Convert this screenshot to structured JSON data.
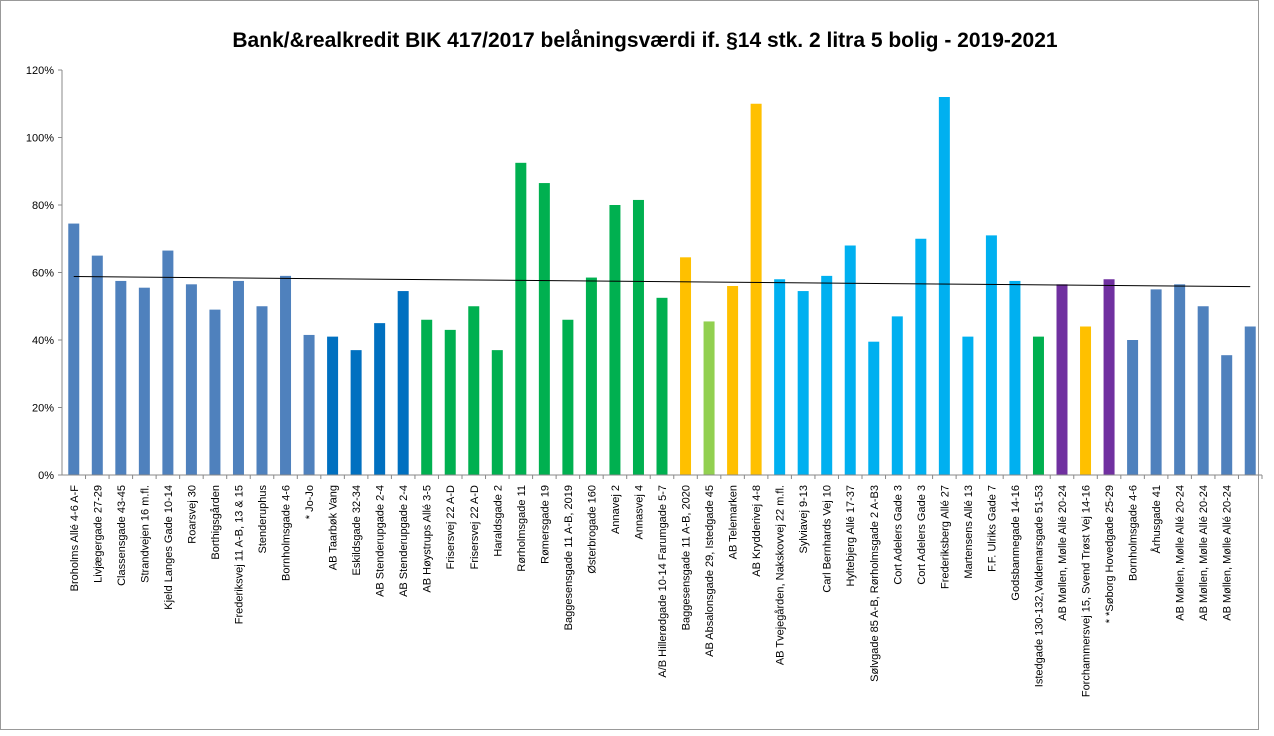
{
  "chart_data": {
    "type": "bar",
    "title": "Bank/&realkredit BIK 417/2017 belåningsværdi if.  §14 stk. 2 litra 5  bolig - 2019-2021",
    "categories": [
      "Broholms Allé 4-6 A-F",
      "Livjægergade 27-29",
      "Classensgade 43-45",
      "Strandvejen 16 m.fl.",
      "Kjeld Langes Gade 10-14",
      "Roarsvej 30",
      "Borthigsgården",
      "Frederiksvej 11 A-B, 13 & 15",
      "Stenderuphus",
      "Bornholmsgade 4-6",
      "* Jo-Jo",
      "AB Taarbøk Vang",
      "Eskildsgade 32-34",
      "AB Stenderupgade 2-4",
      "AB Stenderupgade 2-4",
      "AB Høystrups Allé 3-5",
      "Frisersvej 22 A-D",
      "Frisersvej 22 A-D",
      "Haraldsgade 2",
      "Rørholmsgade 11",
      "Rømersgade 19",
      "Baggesensgade 11 A-B, 2019",
      "Østerbrogade 160",
      "Annavej 2",
      "Annasvej 4",
      "A/B Hillerødgade 10-14 Farumgade 5-7",
      "Baggesensgade 11 A-B, 2020",
      "AB Absalonsgade 29, Istedgade 45",
      "AB Telemarken",
      "AB Krydderivej 4-8",
      "AB Tvejegården, Nakskovvej 22 m.fl.",
      "Sylviavej 9-13",
      "Carl Bernhards Vej 10",
      "Hyltebjerg Allé 17-37",
      "Sølvgade 85 A-B, Rørholmsgade 2 A-B3",
      "Cort Adelers Gade 3",
      "Cort Adelers Gade 3",
      "Frederiksberg Allé 27",
      "Martensens Allé 13",
      "F.F. Ulriks Gade 7",
      "Godsbanmegade 14-16",
      "Istedgade 130-132,Valdemarsgade 51-53",
      "AB Møllen, Mølle Allé 20-24",
      "Forchammersvej 15, Svend Trøst Vej 14-16",
      "* *Søborg Hovedgade 25-29",
      "Bornholmsgade 4-6",
      "Århusgade 41",
      "AB Møllen, Mølle Allé 20-24",
      "AB Møllen, Mølle Allé 20-24",
      "AB Møllen, Mølle Allé 20-24",
      null
    ],
    "values": [
      74.5,
      65,
      57.5,
      55.5,
      66.5,
      56.5,
      49,
      57.5,
      50,
      59,
      41.5,
      41,
      37,
      45,
      54.5,
      46,
      43,
      50,
      37,
      92.5,
      86.5,
      46,
      58.5,
      80,
      81.5,
      52.5,
      64.5,
      45.5,
      56,
      110,
      58,
      54.5,
      59,
      68,
      39.5,
      47,
      70,
      112,
      41,
      71,
      57.5,
      41,
      56.5,
      44,
      58,
      40,
      55,
      56.5,
      50,
      35.5,
      44
    ],
    "colors": [
      "#4f81bd",
      "#4f81bd",
      "#4f81bd",
      "#4f81bd",
      "#4f81bd",
      "#4f81bd",
      "#4f81bd",
      "#4f81bd",
      "#4f81bd",
      "#4f81bd",
      "#4f81bd",
      "#0070c0",
      "#0070c0",
      "#0070c0",
      "#0070c0",
      "#00b050",
      "#00b050",
      "#00b050",
      "#00b050",
      "#00b050",
      "#00b050",
      "#00b050",
      "#00b050",
      "#00b050",
      "#00b050",
      "#00b050",
      "#ffc000",
      "#92d050",
      "#ffc000",
      "#ffc000",
      "#00b0f0",
      "#00b0f0",
      "#00b0f0",
      "#00b0f0",
      "#00b0f0",
      "#00b0f0",
      "#00b0f0",
      "#00b0f0",
      "#00b0f0",
      "#00b0f0",
      "#00b0f0",
      "#00b050",
      "#7030a0",
      "#ffc000",
      "#7030a0",
      "#4f81bd",
      "#4f81bd",
      "#4f81bd",
      "#4f81bd",
      "#4f81bd",
      "#4f81bd"
    ],
    "trendline": [
      58.8,
      55.8
    ],
    "ylim": [
      0,
      120
    ],
    "yticks": [
      {
        "value": 0,
        "label": "0%"
      },
      {
        "value": 20,
        "label": "20%"
      },
      {
        "value": 40,
        "label": "40%"
      },
      {
        "value": 60,
        "label": "60%"
      },
      {
        "value": 80,
        "label": "80%"
      },
      {
        "value": 100,
        "label": "100%"
      },
      {
        "value": 120,
        "label": "120%"
      }
    ],
    "grid": false
  }
}
